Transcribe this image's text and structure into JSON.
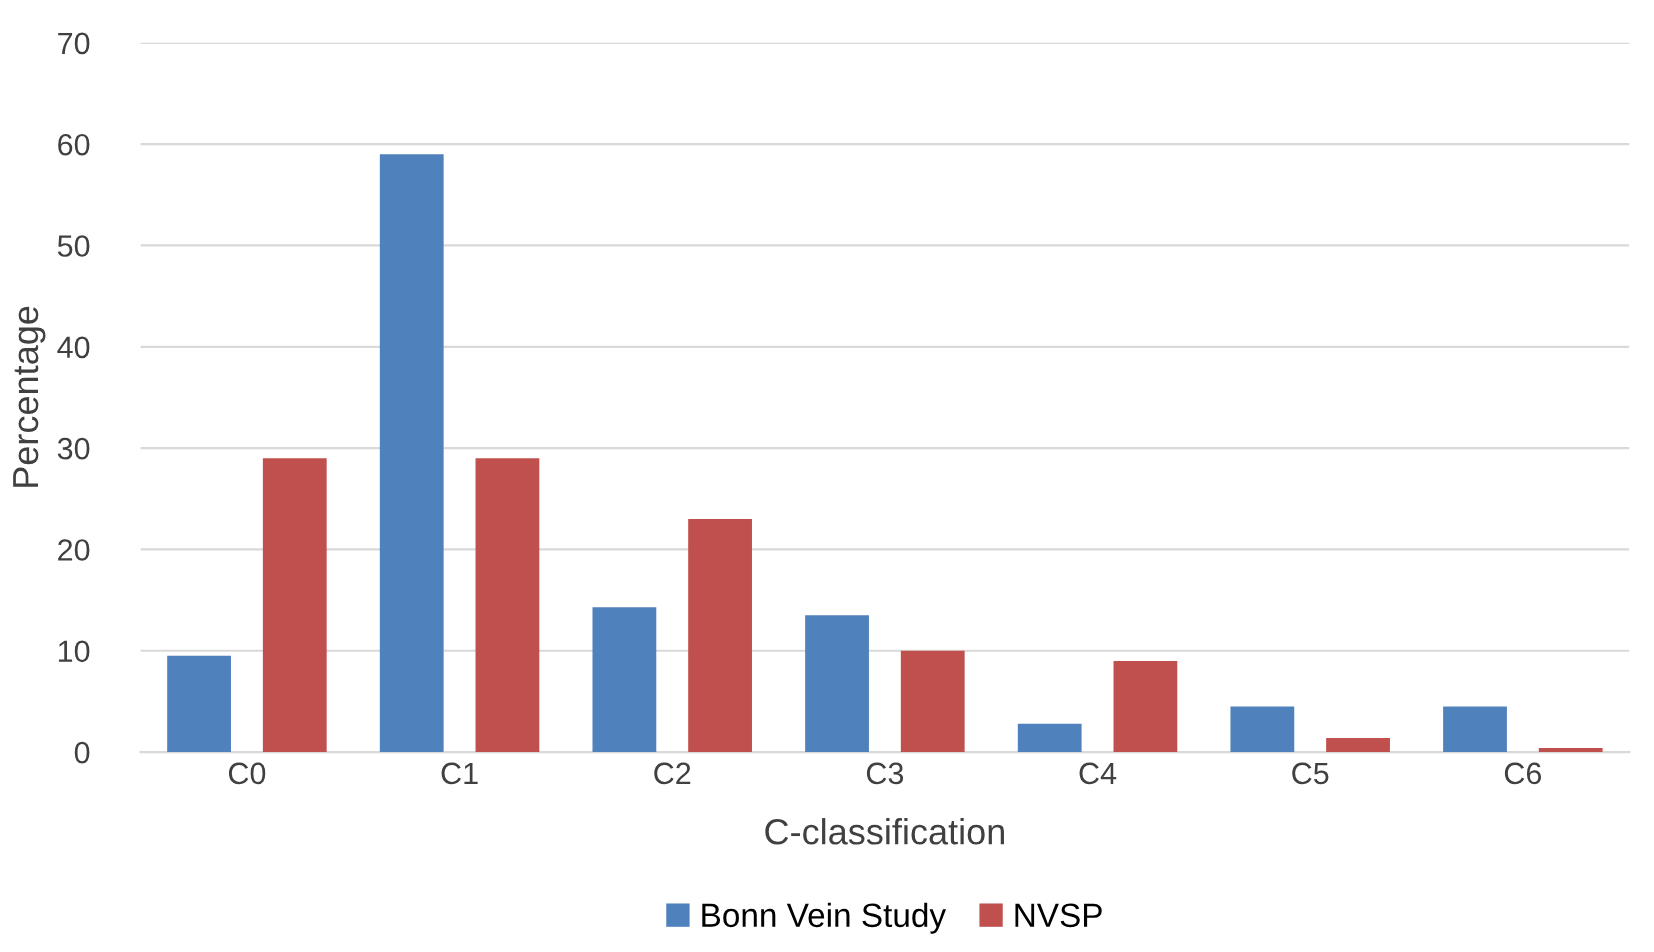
{
  "chart_data": {
    "type": "bar",
    "xlabel": "C-classification",
    "ylabel": "Percentage",
    "categories": [
      "C0",
      "C1",
      "C2",
      "C3",
      "C4",
      "C5",
      "C6"
    ],
    "series": [
      {
        "name": "Bonn Vein Study",
        "color": "#4f81bd",
        "values": [
          9.5,
          59,
          14.3,
          13.5,
          2.8,
          4.5,
          4.5
        ]
      },
      {
        "name": "NVSP",
        "color": "#c0504d",
        "values": [
          29,
          29,
          23,
          10,
          9,
          1.4,
          0.4
        ]
      }
    ],
    "ylim": [
      0,
      70
    ],
    "yticks": [
      0,
      10,
      20,
      30,
      40,
      50,
      60,
      70
    ],
    "grid": "y",
    "legend": "bottom"
  }
}
